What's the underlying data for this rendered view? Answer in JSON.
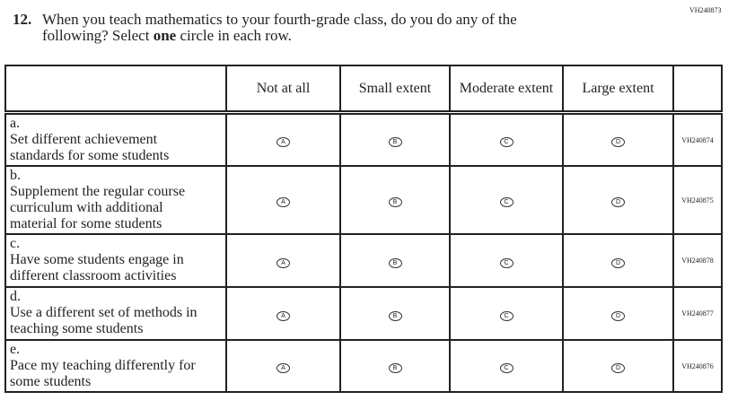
{
  "top_code": "VH240873",
  "question": {
    "number": "12.",
    "line1": "When you teach mathematics to your fourth-grade class, do you do any of the",
    "line2_pre": "following? Select ",
    "line2_bold": "one",
    "line2_post": " circle in each row."
  },
  "columns": [
    "Not at all",
    "Small extent",
    "Moderate extent",
    "Large extent"
  ],
  "bubbles": [
    "A",
    "B",
    "C",
    "D"
  ],
  "rows": [
    {
      "letter": "a.",
      "text": "Set different achievement standards for some students",
      "code": "VH240874"
    },
    {
      "letter": "b.",
      "text": "Supplement the regular course curriculum with additional material for some students",
      "code": "VH240875"
    },
    {
      "letter": "c.",
      "text": "Have some students engage in different classroom activities",
      "code": "VH240878"
    },
    {
      "letter": "d.",
      "text": "Use a different set of methods in teaching some students",
      "code": "VH240877"
    },
    {
      "letter": "e.",
      "text": "Pace my teaching differently for some students",
      "code": "VH240876"
    }
  ]
}
